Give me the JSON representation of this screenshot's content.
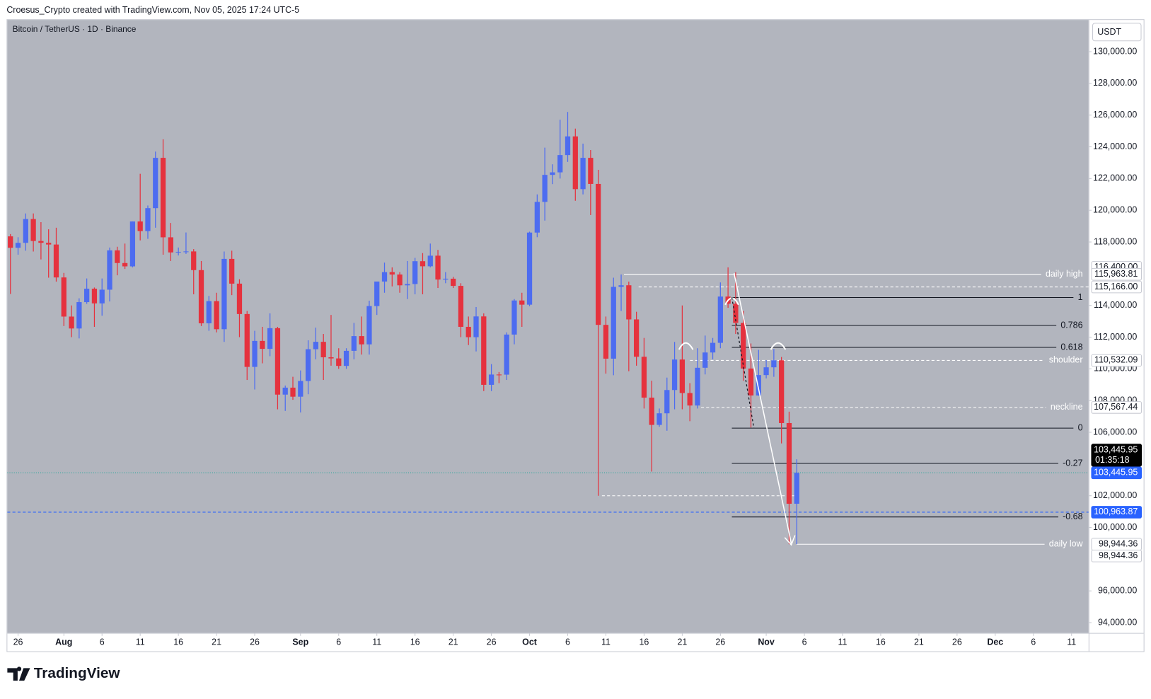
{
  "header": "Croesus_Crypto created with TradingView.com, Nov 05, 2025 17:24 UTC-5",
  "footer": "TradingView",
  "chart_data": {
    "type": "candlestick",
    "title": "Bitcoin / TetherUS · 1D · Binance",
    "currency": "USDT",
    "countdown": "01:35:18",
    "up_color": "#4d6cf0",
    "down_color": "#e5323e",
    "grid": false,
    "x": [
      "Jul 25",
      "Jul 26",
      "Jul 27",
      "Jul 28",
      "Jul 29",
      "Jul 30",
      "Jul 31",
      "Aug 1",
      "Aug 2",
      "Aug 3",
      "Aug 4",
      "Aug 5",
      "Aug 6",
      "Aug 7",
      "Aug 8",
      "Aug 9",
      "Aug 10",
      "Aug 11",
      "Aug 12",
      "Aug 13",
      "Aug 14",
      "Aug 15",
      "Aug 16",
      "Aug 17",
      "Aug 18",
      "Aug 19",
      "Aug 20",
      "Aug 21",
      "Aug 22",
      "Aug 23",
      "Aug 24",
      "Aug 25",
      "Aug 26",
      "Aug 27",
      "Aug 28",
      "Aug 29",
      "Aug 30",
      "Aug 31",
      "Sep 1",
      "Sep 2",
      "Sep 3",
      "Sep 4",
      "Sep 5",
      "Sep 6",
      "Sep 7",
      "Sep 8",
      "Sep 9",
      "Sep 10",
      "Sep 11",
      "Sep 12",
      "Sep 13",
      "Sep 14",
      "Sep 15",
      "Sep 16",
      "Sep 17",
      "Sep 18",
      "Sep 19",
      "Sep 20",
      "Sep 21",
      "Sep 22",
      "Sep 23",
      "Sep 24",
      "Sep 25",
      "Sep 26",
      "Sep 27",
      "Sep 28",
      "Sep 29",
      "Sep 30",
      "Oct 1",
      "Oct 2",
      "Oct 3",
      "Oct 4",
      "Oct 5",
      "Oct 6",
      "Oct 7",
      "Oct 8",
      "Oct 9",
      "Oct 10",
      "Oct 11",
      "Oct 12",
      "Oct 13",
      "Oct 14",
      "Oct 15",
      "Oct 16",
      "Oct 17",
      "Oct 18",
      "Oct 19",
      "Oct 20",
      "Oct 21",
      "Oct 22",
      "Oct 23",
      "Oct 24",
      "Oct 25",
      "Oct 26",
      "Oct 27",
      "Oct 28",
      "Oct 29",
      "Oct 30",
      "Oct 31",
      "Nov 1",
      "Nov 2",
      "Nov 3",
      "Nov 4",
      "Nov 5"
    ],
    "open": [
      118355,
      117635,
      117947,
      119448,
      118062,
      117950,
      117840,
      115764,
      113297,
      112546,
      114208,
      115055,
      114129,
      114993,
      117472,
      116674,
      116463,
      119294,
      118687,
      120134,
      123306,
      118295,
      117342,
      117380,
      117405,
      116227,
      112873,
      114271,
      112500,
      116935,
      115374,
      113458,
      110124,
      111763,
      111262,
      112566,
      108377,
      108816,
      108246,
      109237,
      111240,
      111705,
      110730,
      110659,
      110187,
      111137,
      112065,
      111546,
      113960,
      115507,
      116101,
      115950,
      115268,
      115349,
      116788,
      116468,
      117137,
      115632,
      115685,
      115232,
      112650,
      111998,
      113307,
      108994,
      109643,
      109635,
      112163,
      114311,
      114048,
      118594,
      120529,
      122232,
      122391,
      123482,
      124658,
      121332,
      123306,
      121662,
      112774,
      110644,
      115170,
      115271,
      113118,
      110763,
      108186,
      106467,
      107198,
      108666,
      110588,
      108476,
      107689,
      110069,
      111033,
      111641,
      114559,
      114107,
      112898,
      110021,
      108322,
      109608,
      110098,
      110540,
      106583,
      101497
    ],
    "high": [
      118500,
      118300,
      119800,
      119800,
      119250,
      118800,
      118900,
      116050,
      114000,
      114450,
      115700,
      115130,
      115700,
      117650,
      117700,
      117900,
      119300,
      122300,
      120300,
      123700,
      124474,
      119200,
      117650,
      118600,
      117550,
      116800,
      114600,
      114800,
      117400,
      117450,
      115650,
      113650,
      112400,
      112650,
      113500,
      112650,
      108950,
      109500,
      109900,
      111800,
      112600,
      112200,
      113400,
      111300,
      111300,
      112900,
      113300,
      114300,
      115500,
      116700,
      116400,
      116100,
      116800,
      117000,
      117300,
      117900,
      117500,
      116100,
      115800,
      115400,
      113300,
      113900,
      113500,
      110300,
      109800,
      112300,
      114400,
      114800,
      118650,
      121000,
      123950,
      122900,
      125708,
      126199,
      125150,
      124200,
      123800,
      122550,
      113300,
      115750,
      115950,
      115500,
      113600,
      111950,
      109250,
      107500,
      109450,
      111700,
      114000,
      109100,
      111300,
      112100,
      111950,
      115450,
      116400,
      116100,
      113650,
      111600,
      111200,
      110550,
      111250,
      110750,
      107300,
      104300
    ],
    "low": [
      114723,
      117200,
      117450,
      117400,
      116900,
      115750,
      115500,
      112700,
      112000,
      111920,
      114100,
      112650,
      113350,
      114250,
      115900,
      116300,
      116400,
      118100,
      118200,
      118900,
      117200,
      116800,
      117150,
      117250,
      114700,
      112700,
      112400,
      112300,
      111700,
      114650,
      112000,
      109300,
      108700,
      110350,
      110800,
      107450,
      107350,
      108050,
      107250,
      108400,
      110600,
      109300,
      110200,
      110000,
      110000,
      110600,
      110900,
      110900,
      113400,
      114800,
      115200,
      114800,
      114400,
      114700,
      114700,
      116400,
      115100,
      115400,
      115100,
      112000,
      111500,
      111100,
      108600,
      108600,
      109100,
      109300,
      111550,
      112650,
      113950,
      118300,
      119350,
      121650,
      122000,
      123050,
      120600,
      121000,
      119700,
      102000,
      109700,
      109600,
      113650,
      109850,
      110200,
      107500,
      103528,
      106350,
      106100,
      107450,
      107450,
      106700,
      107500,
      109650,
      110600,
      111300,
      113850,
      112200,
      109250,
      106300,
      108300,
      109400,
      109500,
      105300,
      98944,
      98944
    ],
    "close": [
      117635,
      117947,
      119448,
      118062,
      117950,
      117840,
      115764,
      113297,
      112546,
      114208,
      115055,
      114129,
      114993,
      117472,
      116674,
      116463,
      119294,
      118687,
      120134,
      123306,
      118295,
      117342,
      117380,
      117405,
      116227,
      112873,
      114271,
      112500,
      116935,
      115374,
      113458,
      110124,
      111763,
      111262,
      112566,
      108377,
      108816,
      108246,
      109237,
      111240,
      111705,
      110730,
      110659,
      110187,
      111137,
      112065,
      111546,
      113960,
      115507,
      116101,
      115950,
      115268,
      115349,
      116788,
      116468,
      117137,
      115632,
      115685,
      115232,
      112650,
      111998,
      113307,
      108994,
      109643,
      109635,
      112163,
      114311,
      114048,
      118594,
      120529,
      122232,
      122391,
      123482,
      124658,
      121332,
      123306,
      121662,
      112774,
      110644,
      115170,
      115271,
      113118,
      110763,
      108186,
      106467,
      107198,
      108666,
      110588,
      108476,
      107689,
      110069,
      111033,
      111641,
      114559,
      114107,
      112898,
      110021,
      108322,
      109608,
      110098,
      110540,
      106583,
      101497,
      103445
    ],
    "ylim": [
      93350,
      132000
    ],
    "yticks": [
      {
        "value": 130000,
        "label": "130,000.00"
      },
      {
        "value": 128000,
        "label": "128,000.00"
      },
      {
        "value": 126000,
        "label": "126,000.00"
      },
      {
        "value": 124000,
        "label": "124,000.00"
      },
      {
        "value": 122000,
        "label": "122,000.00"
      },
      {
        "value": 120000,
        "label": "120,000.00"
      },
      {
        "value": 118000,
        "label": "118,000.00"
      },
      {
        "value": 114000,
        "label": "114,000.00"
      },
      {
        "value": 112000,
        "label": "112,000.00"
      },
      {
        "value": 110000,
        "label": "110,000.00"
      },
      {
        "value": 108000,
        "label": "108,000.00"
      },
      {
        "value": 106000,
        "label": "106,000.00"
      },
      {
        "value": 102000,
        "label": "102,000.00"
      },
      {
        "value": 100000,
        "label": "100,000.00"
      },
      {
        "value": 96000,
        "label": "96,000.00"
      },
      {
        "value": 94000,
        "label": "94,000.00"
      }
    ],
    "xticks": [
      {
        "value": "Jul 26",
        "label": "26"
      },
      {
        "value": "Aug 1",
        "label": "Aug"
      },
      {
        "value": "Aug 6",
        "label": "6"
      },
      {
        "value": "Aug 11",
        "label": "11"
      },
      {
        "value": "Aug 16",
        "label": "16"
      },
      {
        "value": "Aug 21",
        "label": "21"
      },
      {
        "value": "Aug 26",
        "label": "26"
      },
      {
        "value": "Sep 1",
        "label": "Sep"
      },
      {
        "value": "Sep 6",
        "label": "6"
      },
      {
        "value": "Sep 11",
        "label": "11"
      },
      {
        "value": "Sep 16",
        "label": "16"
      },
      {
        "value": "Sep 21",
        "label": "21"
      },
      {
        "value": "Sep 26",
        "label": "26"
      },
      {
        "value": "Oct 1",
        "label": "Oct"
      },
      {
        "value": "Oct 6",
        "label": "6"
      },
      {
        "value": "Oct 11",
        "label": "11"
      },
      {
        "value": "Oct 16",
        "label": "16"
      },
      {
        "value": "Oct 21",
        "label": "21"
      },
      {
        "value": "Oct 26",
        "label": "26"
      },
      {
        "value": "Nov 1",
        "label": "Nov"
      },
      {
        "value": "Nov 6",
        "label": "6"
      },
      {
        "value": "Nov 11",
        "label": "11"
      },
      {
        "value": "Nov 16",
        "label": "16"
      },
      {
        "value": "Nov 21",
        "label": "21"
      },
      {
        "value": "Nov 26",
        "label": "26"
      },
      {
        "value": "Dec 1",
        "label": "Dec"
      },
      {
        "value": "Dec 6",
        "label": "6"
      },
      {
        "value": "Dec 11",
        "label": "11"
      }
    ],
    "annotations": [
      {
        "label": "daily high",
        "value": 115963.81,
        "color": "#ffffff",
        "dashed": false
      },
      {
        "label": "1",
        "value": 114500,
        "color": "#131722",
        "dashed": false
      },
      {
        "label": "0.786",
        "value": 112737,
        "color": "#131722",
        "dashed": false
      },
      {
        "label": "0.618",
        "value": 111354,
        "color": "#131722",
        "dashed": false
      },
      {
        "label": "shoulder",
        "value": 110532.09,
        "color": "#ffffff",
        "dashed": true
      },
      {
        "label": "neckline",
        "value": 107567.44,
        "color": "#ffffff",
        "dashed": true
      },
      {
        "label": "0",
        "value": 106263,
        "color": "#131722",
        "dashed": false
      },
      {
        "label": "-0.27",
        "value": 104039,
        "color": "#131722",
        "dashed": false
      },
      {
        "label": "-0.68",
        "value": 100662,
        "color": "#131722",
        "dashed": false
      },
      {
        "label": "daily low",
        "value": 98944.36,
        "color": "#ffffff",
        "dashed": false
      }
    ],
    "price_lines": [
      {
        "value": 115166,
        "color": "#ffffff",
        "dashed": true
      },
      {
        "value": 102000,
        "color": "#ffffff",
        "dashed": true
      },
      {
        "value": 103445.95,
        "color": "#26a69a",
        "dashed": true
      },
      {
        "value": 100963.87,
        "color": "#2962ff",
        "dashed": true
      }
    ],
    "price_tags": [
      {
        "value": 116400,
        "label": "116,400.00",
        "color": "#ffffff"
      },
      {
        "value": 115963.81,
        "label": "115,963.81",
        "color": "#ffffff"
      },
      {
        "value": 115166,
        "label": "115,166.00",
        "color": "#ffffff"
      },
      {
        "value": 110532.09,
        "label": "110,532.09",
        "color": "#ffffff"
      },
      {
        "value": 107567.44,
        "label": "107,567.44",
        "color": "#ffffff"
      },
      {
        "value": 103445.95,
        "label": "103,445.95",
        "color": "#000000"
      },
      {
        "value": 103445.95,
        "label": "103,445.95",
        "color": "#2962ff"
      },
      {
        "value": 100963.87,
        "label": "100,963.87",
        "color": "#2962ff"
      },
      {
        "value": 98944.36,
        "label": "98,944.36",
        "color": "#ffffff"
      },
      {
        "value": 98944.36,
        "label": "98,944.36",
        "color": "#ffffff"
      }
    ]
  }
}
